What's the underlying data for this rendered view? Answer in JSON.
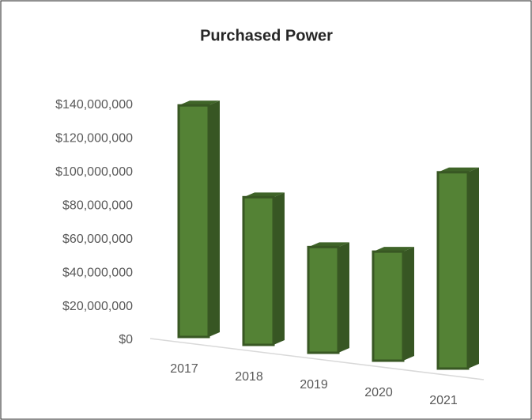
{
  "chart_data": {
    "type": "bar3d",
    "title": "Purchased Power",
    "categories": [
      "2017",
      "2018",
      "2019",
      "2020",
      "2021"
    ],
    "values": [
      138000000,
      88000000,
      63000000,
      65000000,
      117000000
    ],
    "color": "#548235",
    "ylim": [
      0,
      140000000
    ],
    "yticks": [
      {
        "value": 0,
        "label": "$0"
      },
      {
        "value": 20000000,
        "label": "$20,000,000"
      },
      {
        "value": 40000000,
        "label": "$40,000,000"
      },
      {
        "value": 60000000,
        "label": "$60,000,000"
      },
      {
        "value": 80000000,
        "label": "$80,000,000"
      },
      {
        "value": 100000000,
        "label": "$100,000,000"
      },
      {
        "value": 120000000,
        "label": "$120,000,000"
      },
      {
        "value": 140000000,
        "label": "$140,000,000"
      }
    ]
  }
}
